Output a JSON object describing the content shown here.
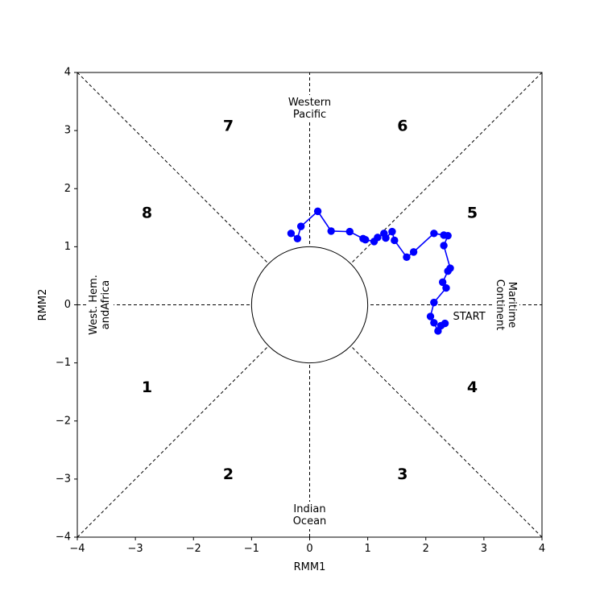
{
  "chart_data": {
    "type": "scatter",
    "xlabel": "RMM1",
    "ylabel": "RMM2",
    "xlim": [
      -4,
      4
    ],
    "ylim": [
      -4,
      4
    ],
    "xticks": [
      -4,
      -3,
      -2,
      -1,
      0,
      1,
      2,
      3,
      4
    ],
    "yticks": [
      -4,
      -3,
      -2,
      -1,
      0,
      1,
      2,
      3,
      4
    ],
    "grid": false,
    "unit_circle_radius": 1,
    "phase_labels": [
      {
        "label": "1",
        "x": -2.8,
        "y": -1.42
      },
      {
        "label": "2",
        "x": -1.4,
        "y": -2.92
      },
      {
        "label": "3",
        "x": 1.6,
        "y": -2.92
      },
      {
        "label": "4",
        "x": 2.8,
        "y": -1.42
      },
      {
        "label": "5",
        "x": 2.8,
        "y": 1.58
      },
      {
        "label": "6",
        "x": 1.6,
        "y": 3.08
      },
      {
        "label": "7",
        "x": -1.4,
        "y": 3.08
      },
      {
        "label": "8",
        "x": -2.8,
        "y": 1.58
      }
    ],
    "regions": {
      "top": [
        "Western",
        "Pacific"
      ],
      "bottom": [
        "Indian",
        "Ocean"
      ],
      "left": [
        "West. Hem.",
        "andAfrica"
      ],
      "right": [
        "Maritime",
        "Continent"
      ]
    },
    "start_label": "START",
    "series": [
      {
        "color": "#0000ff",
        "x": [
          2.33,
          2.26,
          2.21,
          2.14,
          2.08,
          2.14,
          2.35,
          2.29,
          2.38,
          2.42,
          2.31,
          2.38,
          2.31,
          2.14,
          1.79,
          1.67,
          1.46,
          1.42,
          1.31,
          1.28,
          1.17,
          1.11,
          0.96,
          0.92,
          0.69,
          0.37,
          0.14,
          -0.15,
          -0.21,
          -0.32
        ],
        "y": [
          -0.32,
          -0.36,
          -0.45,
          -0.31,
          -0.2,
          0.04,
          0.29,
          0.39,
          0.58,
          0.63,
          1.02,
          1.19,
          1.2,
          1.23,
          0.91,
          0.82,
          1.11,
          1.26,
          1.15,
          1.23,
          1.16,
          1.09,
          1.12,
          1.14,
          1.26,
          1.27,
          1.61,
          1.35,
          1.14,
          1.23
        ]
      }
    ]
  }
}
